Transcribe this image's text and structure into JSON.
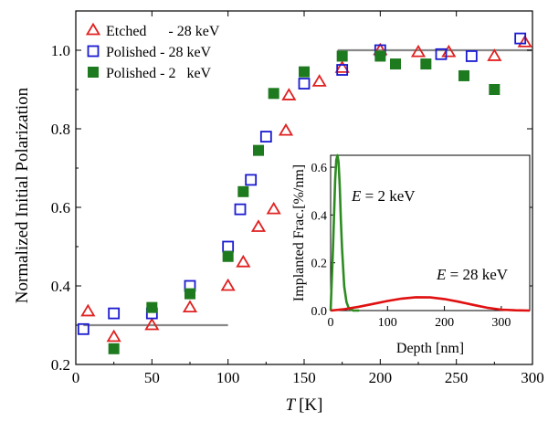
{
  "chart_data": [
    {
      "type": "scatter",
      "xlabel": "T",
      "xlabel_unit": "[K]",
      "ylabel": "Normalized Initial Polarization",
      "xlim": [
        0,
        300
      ],
      "ylim": [
        0.2,
        1.1
      ],
      "x_ticks": [
        0,
        50,
        100,
        150,
        200,
        250,
        300
      ],
      "x_tick_labels": [
        "0",
        "50",
        "100",
        "150",
        "200",
        "250",
        "300"
      ],
      "y_ticks": [
        0.2,
        0.4,
        0.6,
        0.8,
        1.0
      ],
      "y_tick_labels": [
        "0.2",
        "0.4",
        "0.6",
        "0.8",
        "1.0"
      ],
      "legend_position": "top-left",
      "series": [
        {
          "name": "Etched      - 28 keV",
          "marker": "open-triangle",
          "color": "#e02020",
          "points": [
            [
              8,
              0.335
            ],
            [
              25,
              0.27
            ],
            [
              50,
              0.3
            ],
            [
              75,
              0.345
            ],
            [
              100,
              0.4
            ],
            [
              110,
              0.46
            ],
            [
              120,
              0.55
            ],
            [
              130,
              0.595
            ],
            [
              138,
              0.795
            ],
            [
              140,
              0.885
            ],
            [
              160,
              0.92
            ],
            [
              175,
              0.955
            ],
            [
              200,
              1.0
            ],
            [
              225,
              0.995
            ],
            [
              245,
              0.995
            ],
            [
              275,
              0.985
            ],
            [
              295,
              1.02
            ]
          ]
        },
        {
          "name": "Polished - 28 keV",
          "marker": "open-square",
          "color": "#1a1ad0",
          "points": [
            [
              5,
              0.29
            ],
            [
              25,
              0.33
            ],
            [
              50,
              0.33
            ],
            [
              75,
              0.4
            ],
            [
              100,
              0.5
            ],
            [
              108,
              0.595
            ],
            [
              115,
              0.67
            ],
            [
              125,
              0.78
            ],
            [
              150,
              0.915
            ],
            [
              175,
              0.95
            ],
            [
              200,
              1.0
            ],
            [
              240,
              0.99
            ],
            [
              260,
              0.985
            ],
            [
              292,
              1.03
            ]
          ]
        },
        {
          "name": "Polished - 2   keV",
          "marker": "filled-square",
          "color": "#1e7a1e",
          "points": [
            [
              25,
              0.24
            ],
            [
              50,
              0.345
            ],
            [
              75,
              0.38
            ],
            [
              100,
              0.475
            ],
            [
              110,
              0.64
            ],
            [
              120,
              0.745
            ],
            [
              130,
              0.89
            ],
            [
              150,
              0.945
            ],
            [
              175,
              0.985
            ],
            [
              200,
              0.985
            ],
            [
              210,
              0.965
            ],
            [
              230,
              0.965
            ],
            [
              255,
              0.935
            ],
            [
              275,
              0.9
            ]
          ]
        }
      ],
      "reference_lines": [
        {
          "color": "#888888",
          "x": [
            5,
            100
          ],
          "y": 0.3
        },
        {
          "color": "#888888",
          "x": [
            172,
            300
          ],
          "y": 1.0
        }
      ]
    },
    {
      "type": "line",
      "xlabel": "Depth [nm]",
      "ylabel": "Implanted Frac.[%/nm]",
      "xlim": [
        0,
        350
      ],
      "ylim": [
        0,
        0.65
      ],
      "x_ticks": [
        0,
        100,
        200,
        300
      ],
      "x_tick_labels": [
        "0",
        "100",
        "200",
        "300"
      ],
      "y_ticks": [
        0.0,
        0.2,
        0.4,
        0.6
      ],
      "y_tick_labels": [
        "0.0",
        "0.2",
        "0.4",
        "0.6"
      ],
      "annotations": [
        {
          "italic": "E",
          "text": " = 2 keV"
        },
        {
          "italic": "E",
          "text": " = 28 keV"
        }
      ],
      "series": [
        {
          "color": "#2e8b22",
          "x": [
            0,
            4,
            8,
            10,
            12,
            14,
            16,
            18,
            20,
            24,
            28,
            32,
            36,
            40,
            50
          ],
          "y": [
            0.0,
            0.25,
            0.55,
            0.63,
            0.65,
            0.62,
            0.52,
            0.38,
            0.26,
            0.1,
            0.035,
            0.01,
            0.004,
            0.0,
            0.0
          ]
        },
        {
          "color": "#e01010",
          "x": [
            0,
            25,
            50,
            75,
            100,
            125,
            150,
            175,
            200,
            225,
            250,
            275,
            300,
            325,
            350
          ],
          "y": [
            0.0,
            0.006,
            0.016,
            0.028,
            0.04,
            0.05,
            0.056,
            0.055,
            0.048,
            0.037,
            0.024,
            0.012,
            0.004,
            0.001,
            0.0
          ]
        }
      ]
    }
  ]
}
